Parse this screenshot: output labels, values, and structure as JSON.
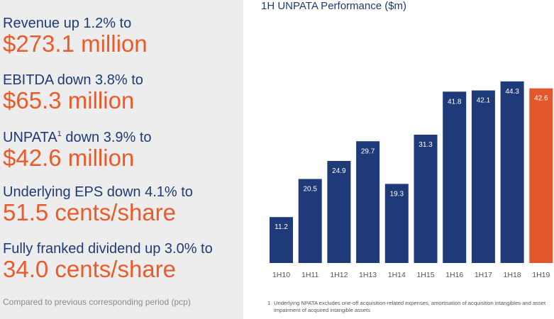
{
  "metrics": [
    {
      "label": "Revenue up 1.2% to",
      "value": "$273.1 million"
    },
    {
      "label_prefix": "EBITDA down 3.8% to",
      "value": "$65.3 million"
    },
    {
      "label_prefix": "UNPATA",
      "sup": "1",
      "label_suffix": " down 3.9% to",
      "value": "$42.6 million"
    },
    {
      "label": "Underlying EPS down 4.1% to",
      "value": "51.5 cents/share"
    },
    {
      "label": "Fully franked dividend up 3.0% to",
      "value": "34.0 cents/share"
    }
  ],
  "left_footnote": "Compared to previous corresponding period (pcp)",
  "chart_title": "1H UNPATA Performance ($m)",
  "chart_data": {
    "type": "bar",
    "title": "1H UNPATA Performance ($m)",
    "categories": [
      "1H10",
      "1H11",
      "1H12",
      "1H13",
      "1H14",
      "1H15",
      "1H16",
      "1H17",
      "1H18",
      "1H19"
    ],
    "values": [
      11.2,
      20.5,
      24.9,
      29.7,
      19.3,
      31.3,
      41.8,
      42.1,
      44.3,
      42.6
    ],
    "ylim": [
      0,
      46
    ],
    "grid": false,
    "colors": {
      "default": "#1f3a78",
      "highlight": "#e2572b",
      "label_text": "#ffffff",
      "tick_text": "#555555"
    },
    "highlight_index": 9
  },
  "right_footnote": {
    "number": "1",
    "text": "Underlying NPATA excludes one-off acquisition-related expenses, amortisation of acquisition intangibles and asset impairment of acquired intangible assets"
  }
}
